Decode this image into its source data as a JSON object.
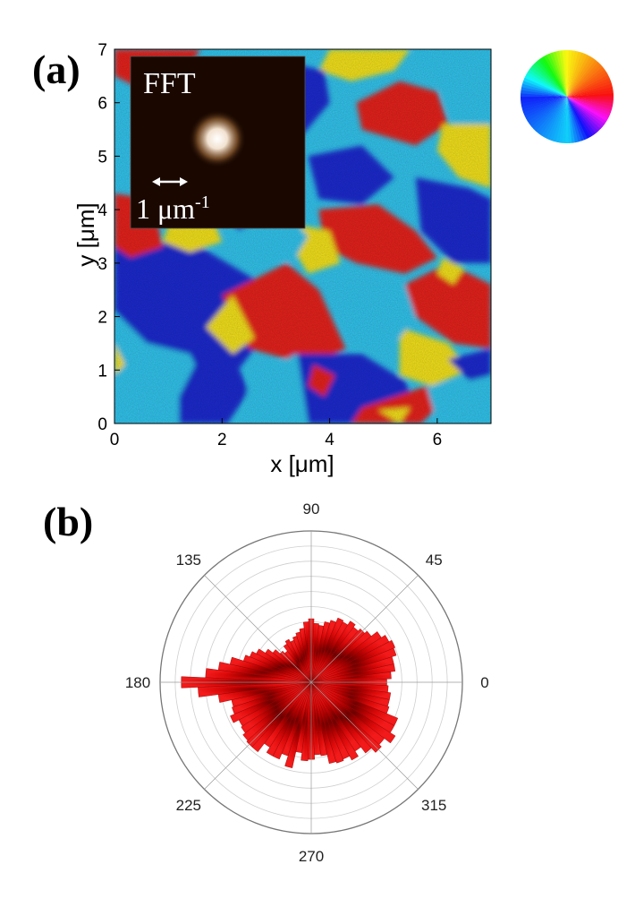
{
  "panels": {
    "a_label": "(a)",
    "b_label": "(b)"
  },
  "chart_data": [
    {
      "type": "heatmap",
      "panel": "(a)",
      "description_of_values": "orientation angle map (hue = angle)",
      "xlabel": "x [μm]",
      "ylabel": "y [μm]",
      "xlim": [
        0,
        7
      ],
      "ylim": [
        0,
        7
      ],
      "xticks": [
        "0",
        "2",
        "4",
        "6"
      ],
      "yticks": [
        "0",
        "1",
        "2",
        "3",
        "4",
        "5",
        "6",
        "7"
      ],
      "colors": {
        "red": "#e8201a",
        "yellow": "#f6e41c",
        "cyan": "#33c6ef",
        "blue": "#1a2bd0"
      },
      "colormap": "circular hue wheel (angle)",
      "inset": {
        "title": "FFT",
        "scale_bar_label": "1 μm",
        "scale_bar_exponent": "-1",
        "background": "#1a0800"
      }
    },
    {
      "type": "bar",
      "subtype": "polar histogram",
      "panel": "(b)",
      "angle_ticks": [
        "0",
        "45",
        "90",
        "135",
        "180",
        "225",
        "270",
        "315"
      ],
      "r_max": 10,
      "bar_color": "#e00a0a",
      "bin_width_deg": 5,
      "angles_deg": [
        0,
        5,
        10,
        15,
        20,
        25,
        30,
        35,
        40,
        45,
        50,
        55,
        60,
        65,
        70,
        75,
        80,
        85,
        90,
        95,
        100,
        105,
        110,
        115,
        120,
        125,
        130,
        135,
        140,
        145,
        150,
        155,
        160,
        165,
        170,
        175,
        180,
        185,
        190,
        195,
        200,
        205,
        210,
        215,
        220,
        225,
        230,
        235,
        240,
        245,
        250,
        255,
        260,
        265,
        270,
        275,
        280,
        285,
        290,
        295,
        300,
        305,
        310,
        315,
        320,
        325,
        330,
        335,
        340,
        345,
        350,
        355
      ],
      "values": [
        5.0,
        5.3,
        5.6,
        5.6,
        5.9,
        6.0,
        5.8,
        5.5,
        5.0,
        4.8,
        4.6,
        4.8,
        4.5,
        4.6,
        4.3,
        4.1,
        3.8,
        3.9,
        4.2,
        4.0,
        3.6,
        3.4,
        3.2,
        3.0,
        3.2,
        3.0,
        2.6,
        2.8,
        3.2,
        3.6,
        4.1,
        4.4,
        4.7,
        5.5,
        6.2,
        7.0,
        8.6,
        7.5,
        6.2,
        5.4,
        5.5,
        5.8,
        5.4,
        5.5,
        5.7,
        5.8,
        5.8,
        5.1,
        5.5,
        5.5,
        5.1,
        5.8,
        4.7,
        5.2,
        5.1,
        4.8,
        4.9,
        5.5,
        5.6,
        5.5,
        5.8,
        5.4,
        5.9,
        6.3,
        6.1,
        6.6,
        6.2,
        6.2,
        5.4,
        5.3,
        5.3,
        5.1
      ]
    }
  ],
  "color_wheel": {
    "description": "hue legend"
  }
}
